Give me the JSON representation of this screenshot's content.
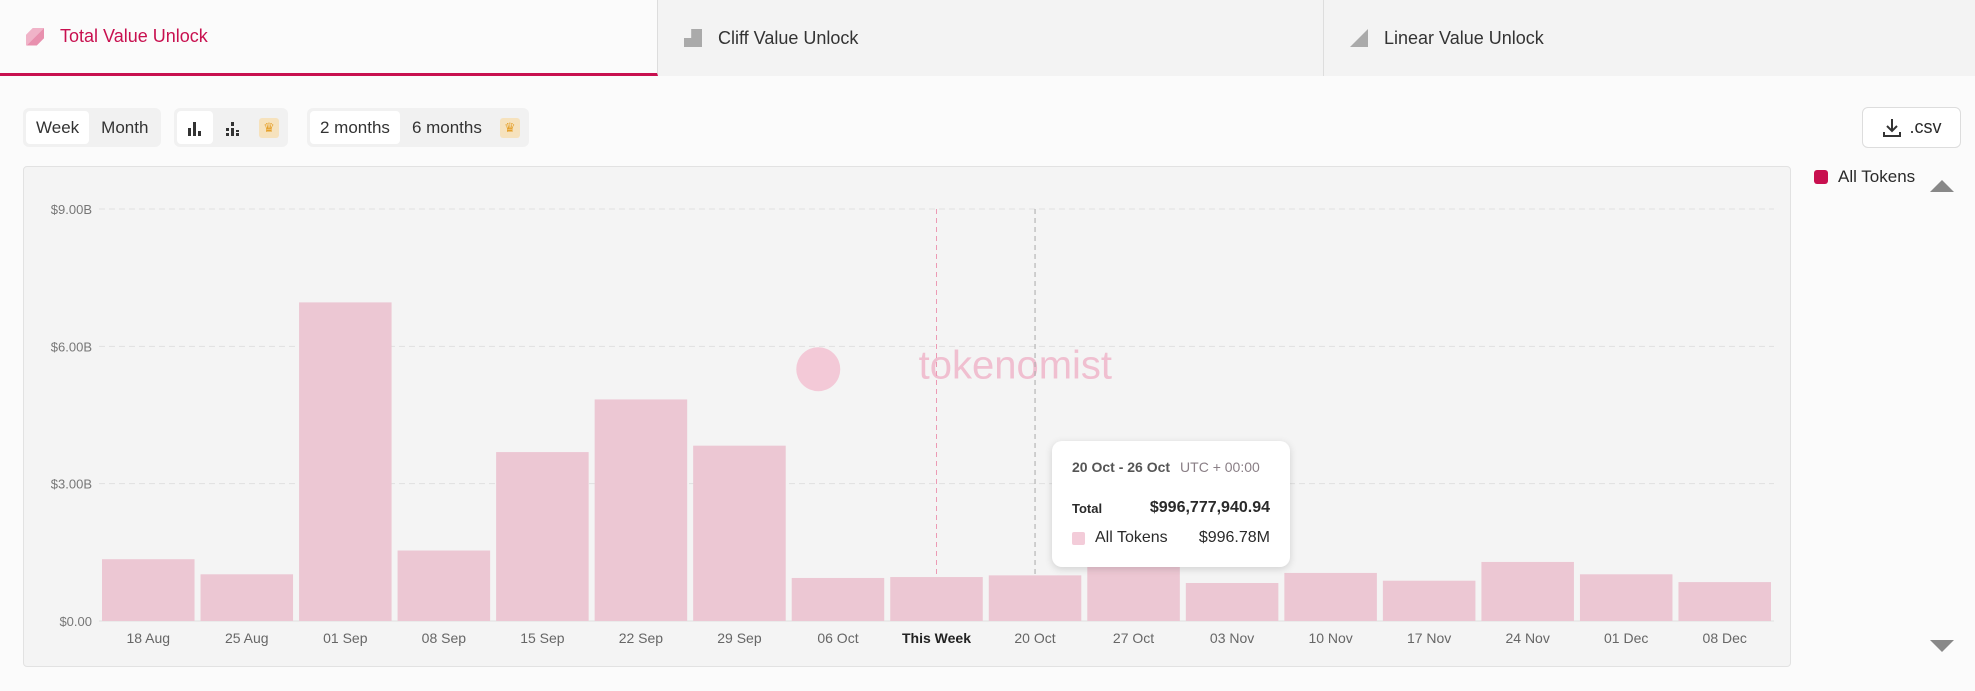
{
  "tabs": [
    {
      "label": "Total Value Unlock",
      "icon": "total-unlock-icon",
      "active": true
    },
    {
      "label": "Cliff Value Unlock",
      "icon": "cliff-unlock-icon"
    },
    {
      "label": "Linear Value Unlock",
      "icon": "linear-unlock-icon"
    }
  ],
  "controls": {
    "week": "Week",
    "month": "Month",
    "range_2": "2 months",
    "range_6": "6 months",
    "csv": ".csv"
  },
  "legend": {
    "label": "All Tokens",
    "color": "#c8104f"
  },
  "watermark": "tokenomist",
  "tooltip": {
    "range": "20 Oct - 26 Oct",
    "tz": "UTC + 00:00",
    "total_label": "Total",
    "total_value": "$996,777,940.94",
    "series_label": "All Tokens",
    "series_value": "$996.78M"
  },
  "colors": {
    "accent": "#c8104f",
    "bar": "#ecc7d3"
  },
  "chart_data": {
    "type": "bar",
    "title": "Total Value Unlock",
    "xlabel": "",
    "ylabel": "",
    "categories": [
      "18 Aug",
      "25 Aug",
      "01 Sep",
      "08 Sep",
      "15 Sep",
      "22 Sep",
      "29 Sep",
      "06 Oct",
      "This Week",
      "20 Oct",
      "27 Oct",
      "03 Nov",
      "10 Nov",
      "17 Nov",
      "24 Nov",
      "01 Dec",
      "08 Dec"
    ],
    "series": [
      {
        "name": "All Tokens",
        "values": [
          1.35,
          1.02,
          6.96,
          1.54,
          3.69,
          4.84,
          3.83,
          0.94,
          0.96,
          0.997,
          1.2,
          0.83,
          1.05,
          0.88,
          1.29,
          1.02,
          0.85
        ]
      }
    ],
    "units": "billion USD",
    "ylim": [
      0,
      9
    ],
    "yticks": [
      0,
      3,
      6,
      9
    ],
    "ytick_labels": [
      "$0.00",
      "$3.00B",
      "$6.00B",
      "$9.00B"
    ],
    "grid": true,
    "legend": "right",
    "highlight_category": "This Week",
    "hover_category": "20 Oct"
  }
}
